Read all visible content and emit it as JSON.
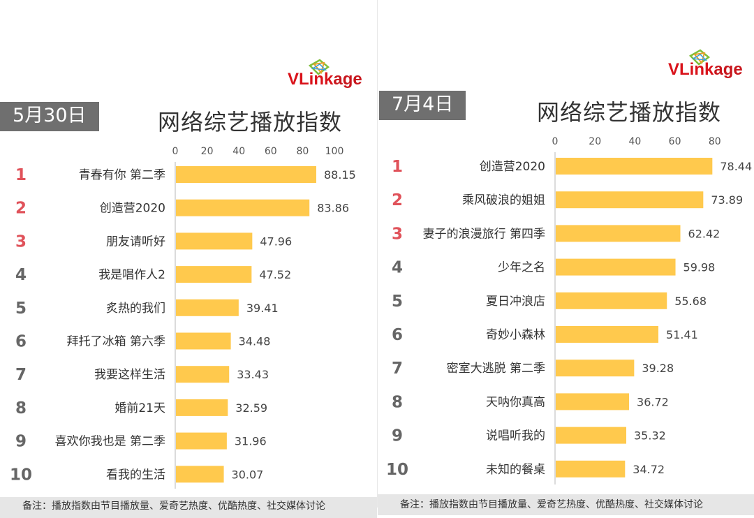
{
  "brand": {
    "logo_text_v": "VL",
    "logo_text_rest": "ink",
    "logo_text_tail": "age"
  },
  "footnote": "备注：播放指数由节目播放量、爱奇艺热度、优酷热度、社交媒体讨论",
  "chart_data": [
    {
      "type": "bar",
      "orientation": "horizontal",
      "date_label": "5月30日",
      "title": "网络综艺播放指数",
      "xlim": [
        0,
        100
      ],
      "xticks": [
        "0",
        "20",
        "40",
        "60",
        "80",
        "100"
      ],
      "ranks": [
        "1",
        "2",
        "3",
        "4",
        "5",
        "6",
        "7",
        "8",
        "9",
        "10"
      ],
      "categories": [
        "青春有你 第二季",
        "创造营2020",
        "朋友请听好",
        "我是唱作人2",
        "炙热的我们",
        "拜托了冰箱 第六季",
        "我要这样生活",
        "婚前21天",
        "喜欢你我也是 第二季",
        "看我的生活"
      ],
      "values": [
        88.15,
        83.86,
        47.96,
        47.52,
        39.41,
        34.48,
        33.43,
        32.59,
        31.96,
        30.07
      ],
      "value_labels": [
        "88.15",
        "83.86",
        "47.96",
        "47.52",
        "39.41",
        "34.48",
        "33.43",
        "32.59",
        "31.96",
        "30.07"
      ],
      "bar_color": "#ffc94d",
      "top_rank_color": "#e0525a",
      "rank_color": "#666666"
    },
    {
      "type": "bar",
      "orientation": "horizontal",
      "date_label": "7月4日",
      "title": "网络综艺播放指数",
      "xlim": [
        0,
        80
      ],
      "xticks": [
        "0",
        "20",
        "40",
        "60",
        "80"
      ],
      "ranks": [
        "1",
        "2",
        "3",
        "4",
        "5",
        "6",
        "7",
        "8",
        "9",
        "10"
      ],
      "categories": [
        "创造营2020",
        "乘风破浪的姐姐",
        "妻子的浪漫旅行 第四季",
        "少年之名",
        "夏日冲浪店",
        "奇妙小森林",
        "密室大逃脱 第二季",
        "天呐你真高",
        "说唱听我的",
        "未知的餐桌"
      ],
      "values": [
        78.44,
        73.89,
        62.42,
        59.98,
        55.68,
        51.41,
        39.28,
        36.72,
        35.32,
        34.72
      ],
      "value_labels": [
        "78.44",
        "73.89",
        "62.42",
        "59.98",
        "55.68",
        "51.41",
        "39.28",
        "36.72",
        "35.32",
        "34.72"
      ],
      "bar_color": "#ffc94d",
      "top_rank_color": "#e0525a",
      "rank_color": "#666666"
    }
  ]
}
